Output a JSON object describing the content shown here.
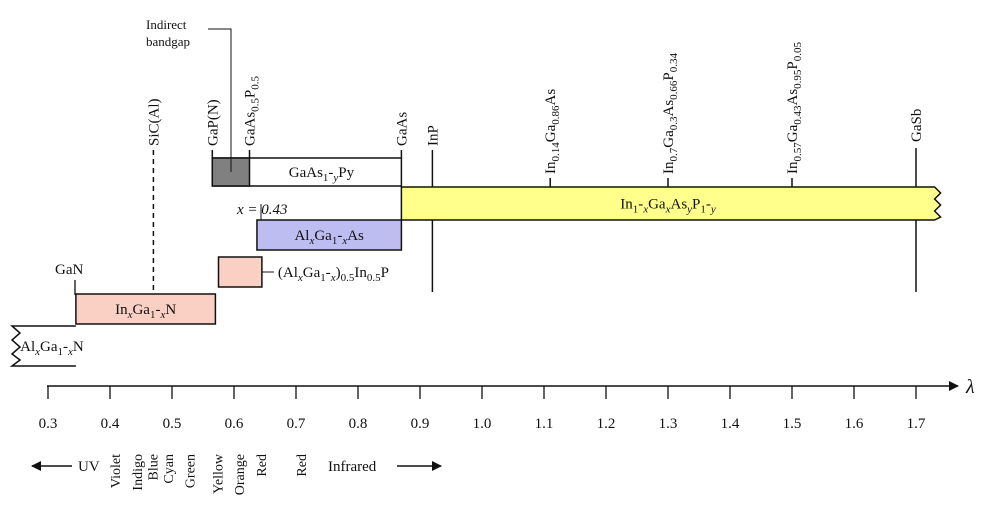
{
  "axis": {
    "variable": "λ",
    "ticks": [
      "0.3",
      "0.4",
      "0.5",
      "0.6",
      "0.7",
      "0.8",
      "0.9",
      "1.0",
      "1.1",
      "1.2",
      "1.3",
      "1.4",
      "1.5",
      "1.6",
      "1.7"
    ]
  },
  "spectrum": {
    "uv": "UV",
    "infrared": "Infrared",
    "colors": [
      {
        "label": "Violet",
        "at": 0.41
      },
      {
        "label": "Indigo",
        "at": 0.445
      },
      {
        "label": "Blue",
        "at": 0.47
      },
      {
        "label": "Cyan",
        "at": 0.495
      },
      {
        "label": "Green",
        "at": 0.53
      },
      {
        "label": "Yellow",
        "at": 0.575
      },
      {
        "label": "Orange",
        "at": 0.61
      },
      {
        "label": "Red",
        "at": 0.645
      },
      {
        "label": "Red",
        "at": 0.71
      }
    ]
  },
  "compounds": [
    {
      "id": "sic",
      "label": "SiC(Al)",
      "at": 0.47,
      "dashed": true
    },
    {
      "id": "gapn",
      "label": "GaP(N)",
      "at": 0.565
    },
    {
      "id": "gaasp",
      "label": "GaAs0.5P0.5",
      "at": 0.625
    },
    {
      "id": "gaas",
      "label": "GaAs",
      "at": 0.87
    },
    {
      "id": "inp",
      "label": "InP",
      "at": 0.92
    },
    {
      "id": "ingaas",
      "label": "In0.14Ga0.86As",
      "at": 1.11
    },
    {
      "id": "ingaasp1",
      "label": "In0.7Ga0.3As0.66P0.34",
      "at": 1.3
    },
    {
      "id": "ingaasp2",
      "label": "In0.57Ga0.43As0.95P0.05",
      "at": 1.5
    },
    {
      "id": "gasb",
      "label": "GaSb",
      "at": 1.7
    }
  ],
  "annotations": {
    "gan": "GaN",
    "indirect_1": "Indirect",
    "indirect_2": "bandgap",
    "x_value": "x = 0.43"
  },
  "bands": [
    {
      "id": "gaasp-band",
      "label": "GaAs1-yPy",
      "from": 0.565,
      "to": 0.87,
      "color": "#ffffff",
      "shaded_from": 0.565,
      "shaded_to": 0.625,
      "shade_color": "#808080"
    },
    {
      "id": "ingaasp-band",
      "label": "In1-xGaxAsyP1-y",
      "from": 0.87,
      "to": 1.73,
      "color": "#ffff8c"
    },
    {
      "id": "algaas-band",
      "label": "AlxGa1-xAs",
      "from": 0.637,
      "to": 0.87,
      "color": "#bdbdf2"
    },
    {
      "id": "algainp-band",
      "label": "(AlxGa1-x)0.5In0.5P",
      "from": 0.575,
      "to": 0.645,
      "color": "#fbd0c4"
    },
    {
      "id": "ingan-band",
      "label": "InxGa1-xN",
      "from": 0.345,
      "to": 0.57,
      "color": "#fbd0c4"
    },
    {
      "id": "algan-band",
      "label": "AlxGa1-xN",
      "from": 0.21,
      "to": 0.345,
      "color": "#ffffff"
    }
  ]
}
